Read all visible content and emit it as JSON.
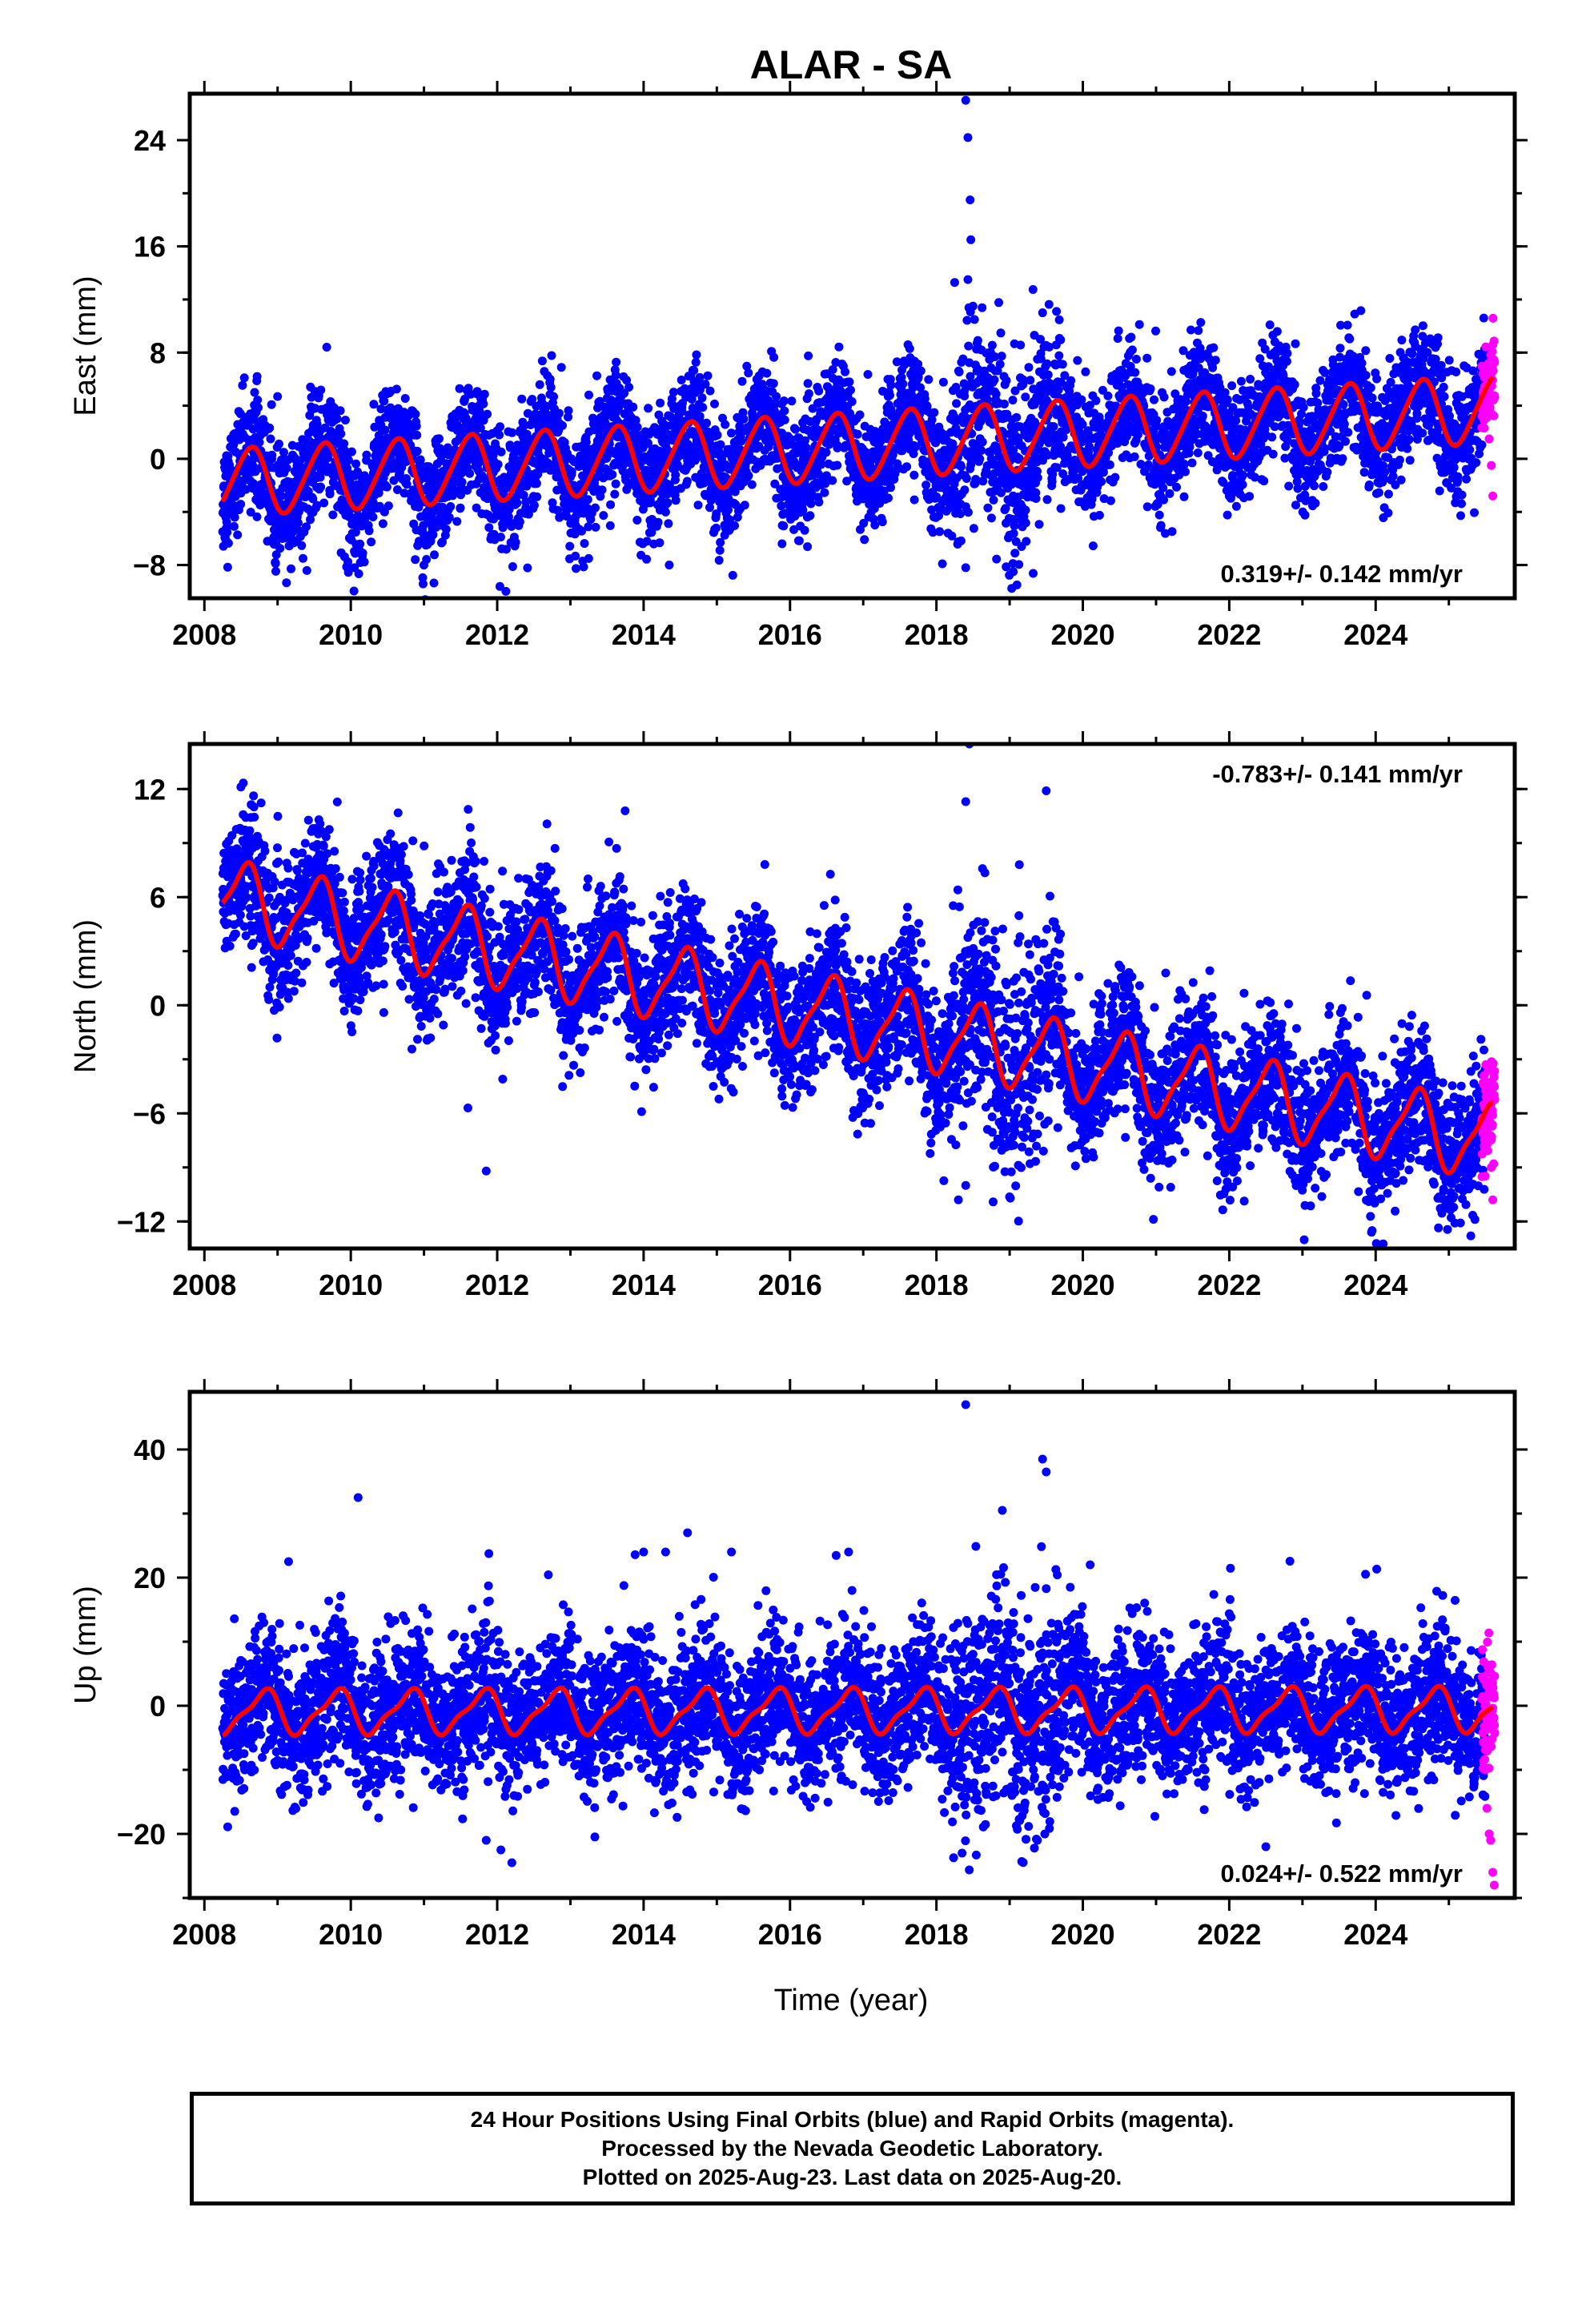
{
  "title": "ALAR - SA",
  "xlabel": "Time (year)",
  "footer": {
    "line1": "24 Hour Positions Using Final Orbits (blue) and Rapid Orbits (magenta).",
    "line2": "Processed by the Nevada Geodetic Laboratory.",
    "line3": "Plotted on 2025-Aug-23. Last data on 2025-Aug-20."
  },
  "colors": {
    "final": "#0000ff",
    "rapid": "#ff00ff",
    "model": "#ff0000",
    "axes": "#000000"
  },
  "chart_data": [
    {
      "type": "scatter",
      "component": "east",
      "ylabel": "East (mm)",
      "xlim": [
        2007.8,
        2025.9
      ],
      "ylim": [
        -10.5,
        27.5
      ],
      "xticks": [
        2008,
        2010,
        2012,
        2014,
        2016,
        2018,
        2020,
        2022,
        2024
      ],
      "xtick_labels": [
        "2008",
        "2010",
        "2012",
        "2014",
        "2016",
        "2018",
        "2020",
        "2022",
        "2024"
      ],
      "yticks": [
        -8,
        0,
        8,
        16,
        24
      ],
      "ytick_labels": [
        "−8",
        "0",
        "8",
        "16",
        "24"
      ],
      "rate_label": "0.319+/- 0.142 mm/yr",
      "rate_position": "bottom-right",
      "model": {
        "offset": -1.8,
        "trend": 0.319,
        "t0": 2008.25,
        "annual": 2.5,
        "phase": 2008.62,
        "semiannual": 0.3
      },
      "scatter": 2.2,
      "outliers": [
        [
          2018.4,
          27.0
        ],
        [
          2018.43,
          24.2
        ],
        [
          2018.46,
          19.5
        ],
        [
          2018.47,
          16.5
        ],
        [
          2018.43,
          13.5
        ],
        [
          2018.5,
          11.5
        ],
        [
          2019.45,
          11.0
        ],
        [
          2008.72,
          6.2
        ],
        [
          2019.05,
          -8.5
        ],
        [
          2019.1,
          -9.5
        ],
        [
          2018.4,
          -8.2
        ],
        [
          2010.05,
          -8.2
        ],
        [
          2014.35,
          -8.0
        ]
      ],
      "rapid": {
        "x": [
          2025.52,
          2025.55,
          2025.58,
          2025.6
        ],
        "y": [
          4.5,
          1.5,
          -0.5,
          -2.8
        ]
      }
    },
    {
      "type": "scatter",
      "component": "north",
      "ylabel": "North (mm)",
      "xlim": [
        2007.8,
        2025.9
      ],
      "ylim": [
        -13.5,
        14.5
      ],
      "xticks": [
        2008,
        2010,
        2012,
        2014,
        2016,
        2018,
        2020,
        2022,
        2024
      ],
      "xtick_labels": [
        "2008",
        "2010",
        "2012",
        "2014",
        "2016",
        "2018",
        "2020",
        "2022",
        "2024"
      ],
      "yticks": [
        -12,
        -6,
        0,
        6,
        12
      ],
      "ytick_labels": [
        "−12",
        "−6",
        "0",
        "6",
        "12"
      ],
      "rate_label": "-0.783+/- 0.141 mm/yr",
      "rate_position": "top-right",
      "model": {
        "offset": 6.0,
        "trend": -0.783,
        "t0": 2008.25,
        "annual": 2.0,
        "phase": 2008.55,
        "semiannual": 0.5
      },
      "scatter": 1.9,
      "outliers": [
        [
          2018.45,
          14.5
        ],
        [
          2018.4,
          11.3
        ],
        [
          2019.5,
          11.9
        ],
        [
          2011.6,
          -5.7
        ],
        [
          2011.85,
          -9.2
        ],
        [
          2018.3,
          -10.8
        ],
        [
          2018.4,
          -10.0
        ],
        [
          2025.3,
          -12.8
        ],
        [
          2021.2,
          -10.1
        ]
      ],
      "rapid": {
        "x": [
          2025.52,
          2025.55,
          2025.58,
          2025.6
        ],
        "y": [
          -5.5,
          -7.5,
          -9.0,
          -10.8
        ]
      }
    },
    {
      "type": "scatter",
      "component": "up",
      "ylabel": "Up (mm)",
      "xlim": [
        2007.8,
        2025.9
      ],
      "ylim": [
        -30,
        49
      ],
      "xticks": [
        2008,
        2010,
        2012,
        2014,
        2016,
        2018,
        2020,
        2022,
        2024
      ],
      "xtick_labels": [
        "2008",
        "2010",
        "2012",
        "2014",
        "2016",
        "2018",
        "2020",
        "2022",
        "2024"
      ],
      "yticks": [
        -20,
        0,
        20,
        40
      ],
      "ytick_labels": [
        "−20",
        "0",
        "20",
        "40"
      ],
      "rate_label": "0.024+/- 0.522 mm/yr",
      "rate_position": "bottom-right",
      "model": {
        "offset": -1.0,
        "trend": 0.024,
        "t0": 2008.25,
        "annual": 3.2,
        "phase": 2008.8,
        "semiannual": 1.0
      },
      "scatter": 5.5,
      "outliers": [
        [
          2018.4,
          47.0
        ],
        [
          2019.45,
          38.5
        ],
        [
          2019.5,
          36.5
        ],
        [
          2010.1,
          32.5
        ],
        [
          2018.9,
          30.5
        ],
        [
          2009.15,
          22.5
        ],
        [
          2014.6,
          27.0
        ],
        [
          2014.0,
          24.0
        ],
        [
          2014.3,
          24.0
        ],
        [
          2015.2,
          24.0
        ],
        [
          2020.1,
          22.0
        ],
        [
          2016.8,
          24.0
        ],
        [
          2011.85,
          -21.0
        ],
        [
          2012.05,
          -22.5
        ],
        [
          2012.2,
          -24.5
        ],
        [
          2018.35,
          -23.0
        ],
        [
          2022.5,
          -22.0
        ]
      ],
      "rapid": {
        "x": [
          2025.5,
          2025.52,
          2025.55,
          2025.57,
          2025.6,
          2025.62
        ],
        "y": [
          -10.0,
          -16.0,
          -20.0,
          -21.0,
          -26.0,
          -28.0
        ]
      }
    }
  ]
}
